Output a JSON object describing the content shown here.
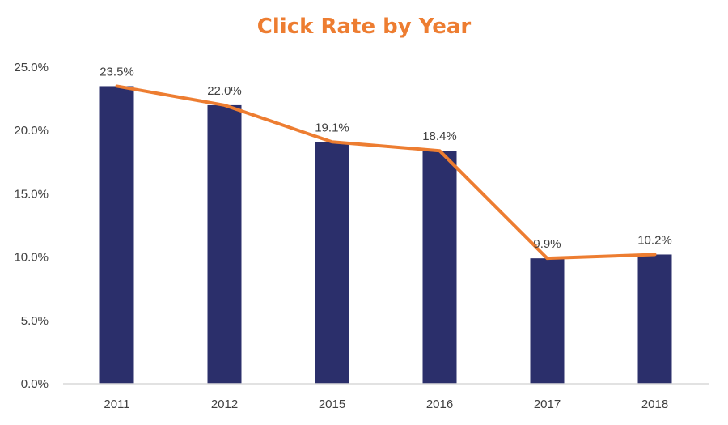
{
  "chart_data": {
    "type": "bar",
    "title": "Click Rate by Year",
    "categories": [
      "2011",
      "2012",
      "2015",
      "2016",
      "2017",
      "2018"
    ],
    "values": [
      23.5,
      22.0,
      19.1,
      18.4,
      9.9,
      10.2
    ],
    "data_labels": [
      "23.5%",
      "22.0%",
      "19.1%",
      "18.4%",
      "9.9%",
      "10.2%"
    ],
    "overlay_line": {
      "type": "line",
      "values": [
        23.5,
        22.0,
        19.1,
        18.4,
        9.9,
        10.2
      ]
    },
    "y_ticks": [
      "0.0%",
      "5.0%",
      "10.0%",
      "15.0%",
      "20.0%",
      "25.0%"
    ],
    "ylim": [
      0,
      25
    ],
    "xlabel": "",
    "ylabel": "",
    "grid": false,
    "legend": "none",
    "colors": {
      "bar": "#2b2f6b",
      "line": "#ed7d31",
      "title": "#ed7d31",
      "axis": "#d9d9d9"
    }
  }
}
